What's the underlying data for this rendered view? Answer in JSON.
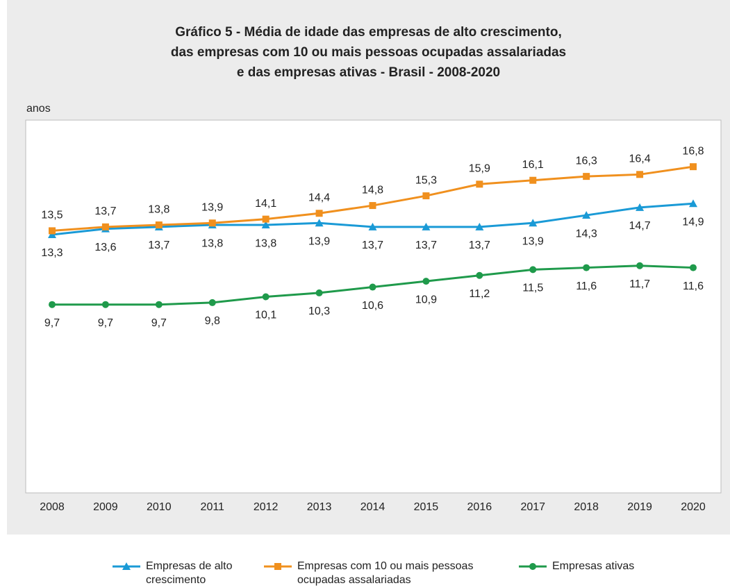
{
  "chart_data": {
    "type": "line",
    "title": "Gráfico 5 - Média de idade das empresas de alto crescimento,\ndas empresas com 10 ou mais pessoas ocupadas  assalariadas\ne das empresas ativas - Brasil - 2008-2020",
    "y_label": "anos",
    "categories": [
      "2008",
      "2009",
      "2010",
      "2011",
      "2012",
      "2013",
      "2014",
      "2015",
      "2016",
      "2017",
      "2018",
      "2019",
      "2020"
    ],
    "ylim": [
      0,
      19.2
    ],
    "series": [
      {
        "name": "Empresas de alto crescimento",
        "color": "#1a9ad6",
        "marker": "triangle",
        "label_position": "below",
        "values": [
          13.3,
          13.6,
          13.7,
          13.8,
          13.8,
          13.9,
          13.7,
          13.7,
          13.7,
          13.9,
          14.3,
          14.7,
          14.9
        ],
        "value_labels": [
          "13,3",
          "13,6",
          "13,7",
          "13,8",
          "13,8",
          "13,9",
          "13,7",
          "13,7",
          "13,7",
          "13,9",
          "14,3",
          "14,7",
          "14,9"
        ]
      },
      {
        "name": "Empresas com 10 ou mais pessoas ocupadas assalariadas",
        "color": "#f0901e",
        "marker": "square",
        "label_position": "above",
        "values": [
          13.5,
          13.7,
          13.8,
          13.9,
          14.1,
          14.4,
          14.8,
          15.3,
          15.9,
          16.1,
          16.3,
          16.4,
          16.8
        ],
        "value_labels": [
          "13,5",
          "13,7",
          "13,8",
          "13,9",
          "14,1",
          "14,4",
          "14,8",
          "15,3",
          "15,9",
          "16,1",
          "16,3",
          "16,4",
          "16,8"
        ]
      },
      {
        "name": "Empresas ativas",
        "color": "#1f9a4b",
        "marker": "circle",
        "label_position": "below",
        "values": [
          9.7,
          9.7,
          9.7,
          9.8,
          10.1,
          10.3,
          10.6,
          10.9,
          11.2,
          11.5,
          11.6,
          11.7,
          11.6
        ],
        "value_labels": [
          "9,7",
          "9,7",
          "9,7",
          "9,8",
          "10,1",
          "10,3",
          "10,6",
          "10,9",
          "11,2",
          "11,5",
          "11,6",
          "11,7",
          "11,6"
        ]
      }
    ]
  }
}
